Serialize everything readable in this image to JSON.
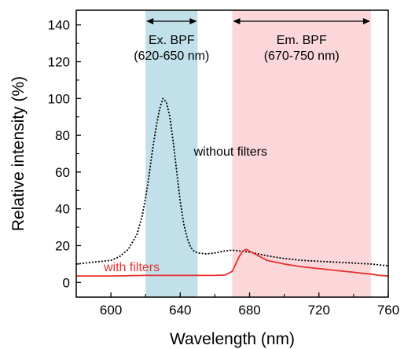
{
  "chart_data": {
    "type": "line",
    "title": "",
    "xlabel": "Wavelength (nm)",
    "ylabel": "Relative intensity (%)",
    "xlim": [
      580,
      760
    ],
    "ylim": [
      -8,
      148
    ],
    "xticks": [
      600,
      640,
      680,
      720,
      760
    ],
    "yticks": [
      0,
      20,
      40,
      60,
      80,
      100,
      120,
      140
    ],
    "grid": false,
    "bands": [
      {
        "label_line1": "Ex. BPF",
        "label_line2": "(620-650 nm)",
        "x_start": 620,
        "x_end": 650,
        "color": "#c1e0ea"
      },
      {
        "label_line1": "Em. BPF",
        "label_line2": "(670-750 nm)",
        "x_start": 670,
        "x_end": 750,
        "color": "#fbd7da"
      }
    ],
    "series": [
      {
        "name": "without filters",
        "color": "#000000",
        "style": "dotted",
        "points": [
          [
            580,
            10
          ],
          [
            590,
            11
          ],
          [
            600,
            12
          ],
          [
            605,
            14
          ],
          [
            610,
            18
          ],
          [
            615,
            26
          ],
          [
            618,
            36
          ],
          [
            620,
            46
          ],
          [
            622,
            58
          ],
          [
            624,
            72
          ],
          [
            626,
            84
          ],
          [
            628,
            94
          ],
          [
            630,
            100
          ],
          [
            632,
            98
          ],
          [
            634,
            90
          ],
          [
            636,
            76
          ],
          [
            638,
            60
          ],
          [
            640,
            44
          ],
          [
            642,
            32
          ],
          [
            644,
            24
          ],
          [
            646,
            19
          ],
          [
            648,
            17
          ],
          [
            650,
            16
          ],
          [
            655,
            15.5
          ],
          [
            660,
            16
          ],
          [
            665,
            17
          ],
          [
            670,
            17.5
          ],
          [
            675,
            17
          ],
          [
            680,
            16.5
          ],
          [
            685,
            15.5
          ],
          [
            690,
            14.5
          ],
          [
            700,
            13
          ],
          [
            710,
            12
          ],
          [
            720,
            11.5
          ],
          [
            730,
            11
          ],
          [
            740,
            10.5
          ],
          [
            750,
            10
          ],
          [
            760,
            9
          ]
        ]
      },
      {
        "name": "with filters",
        "color": "#e8302e",
        "style": "solid",
        "points": [
          [
            580,
            3.5
          ],
          [
            600,
            3.5
          ],
          [
            620,
            3.8
          ],
          [
            640,
            3.8
          ],
          [
            660,
            3.8
          ],
          [
            666,
            4
          ],
          [
            670,
            6
          ],
          [
            672,
            10
          ],
          [
            674,
            14
          ],
          [
            676,
            17
          ],
          [
            678,
            18
          ],
          [
            680,
            17
          ],
          [
            684,
            15
          ],
          [
            690,
            12
          ],
          [
            700,
            10
          ],
          [
            710,
            8.5
          ],
          [
            720,
            7.5
          ],
          [
            730,
            6.5
          ],
          [
            740,
            5.5
          ],
          [
            750,
            4.5
          ],
          [
            755,
            3.8
          ],
          [
            760,
            3.5
          ]
        ]
      }
    ],
    "annotations": [
      {
        "text": "without filters",
        "x": 669,
        "y": 69,
        "color": "#000000",
        "anchor": "middle"
      },
      {
        "text": "with filters",
        "x": 612,
        "y": 6,
        "color": "#e8302e",
        "anchor": "middle"
      }
    ]
  }
}
